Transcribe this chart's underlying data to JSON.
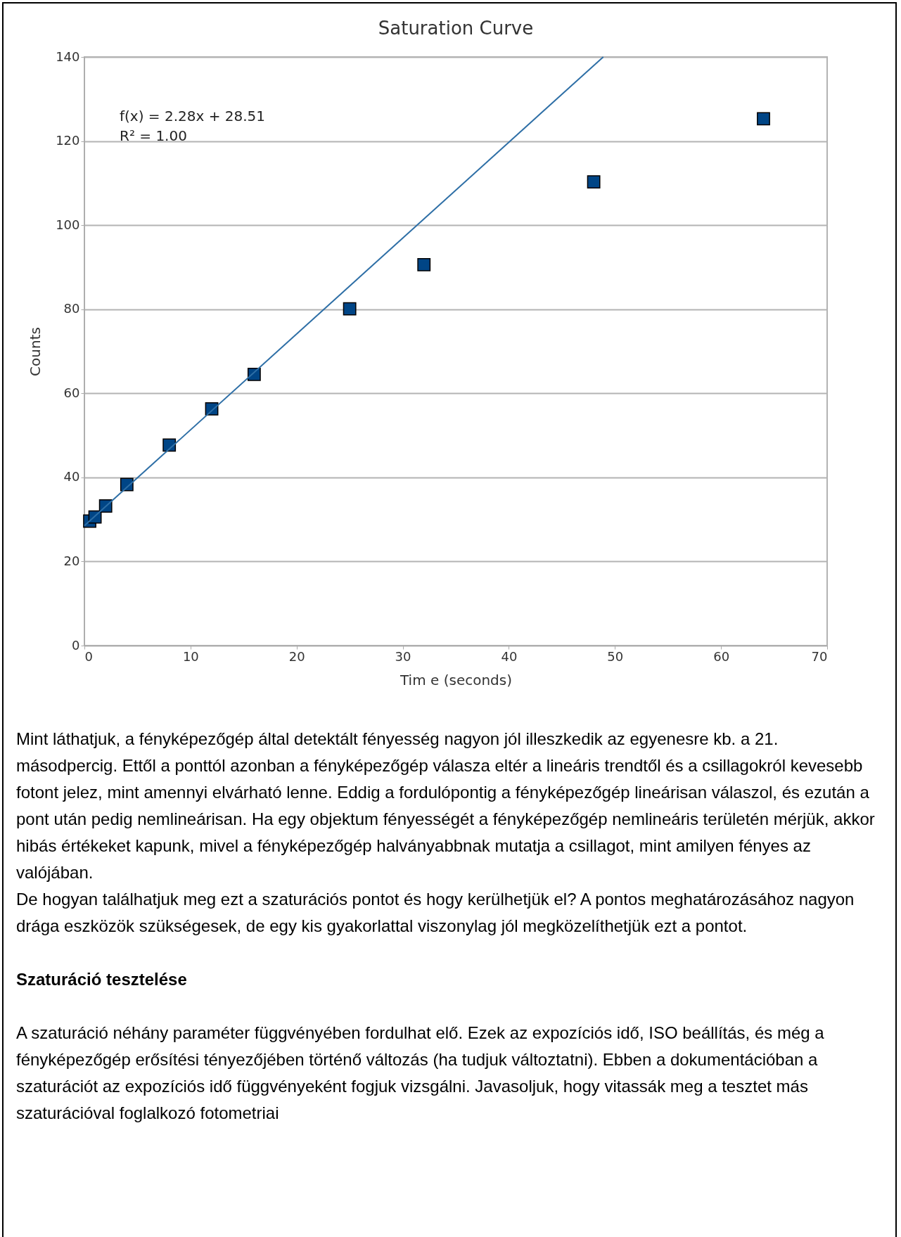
{
  "chart_data": {
    "type": "scatter",
    "title": "Saturation Curve",
    "xlabel": "Tim e (seconds)",
    "ylabel": "Counts",
    "xlim": [
      0,
      70
    ],
    "xticks": [
      0,
      10,
      20,
      30,
      40,
      50,
      60,
      70
    ],
    "ylim": [
      0,
      140
    ],
    "yticks": [
      0,
      20,
      40,
      60,
      80,
      100,
      120,
      140
    ],
    "grid": "y",
    "marker": "square",
    "series": [
      {
        "color": "#004586",
        "x": [
          0.5,
          1,
          2,
          4,
          8,
          12,
          16,
          25,
          32,
          48,
          64
        ],
        "values": [
          29.6,
          30.6,
          33.2,
          38.3,
          47.7,
          56.3,
          64.5,
          80.1,
          90.6,
          110.3,
          125.3
        ]
      },
      {
        "type": "line",
        "color": "#2e6fa6",
        "marker": "none",
        "x": [
          0,
          48.9
        ],
        "values": [
          28.51,
          140
        ]
      }
    ],
    "annotations": [
      "f(x) = 2.28x + 28.51",
      "R² = 1.00",
      "Mint láthatjuk, a fényképezőgép által detektált fényesség nagyon jól illeszkedik az egyenesre kb. a 21. másodpercig. Ettől a ponttól azonban a fényképezőgép válasza eltér a lineáris trendtől és a csillagokról kevesebb fotont jelez, mint amennyi elvárható lenne. Eddig a fordulópontig a fényképezőgép lineárisan válaszol, és ezután a pont után pedig nemlineárisan. Ha egy objektum fényességét a fényképezőgép nemlineáris területén mérjük, akkor hibás értékeket kapunk, mivel a fényképezőgép halványabbnak mutatja a csillagot, mint amilyen fényes az valójában.",
      "De hogyan találhatjuk meg ezt a szaturációs pontot és hogy kerülhetjük el? A pontos meghatározásához nagyon drága eszközök szükségesek, de egy kis gyakorlattal viszonylag jól megközelíthetjük ezt a pontot.",
      "Szaturáció tesztelése",
      "A szaturáció néhány paraméter függvényében fordulhat elő. Ezek az expozíciós idő, ISO beállítás, és még a fényképezőgép erősítési tényezőjében történő változás (ha tudjuk változtatni). Ebben a dokumentációban a szaturációt az expozíciós idő függvényeként fogjuk vizsgálni. Javasoljuk, hogy vitassák meg a tesztet más szaturációval foglalkozó fotometriai"
    ]
  }
}
